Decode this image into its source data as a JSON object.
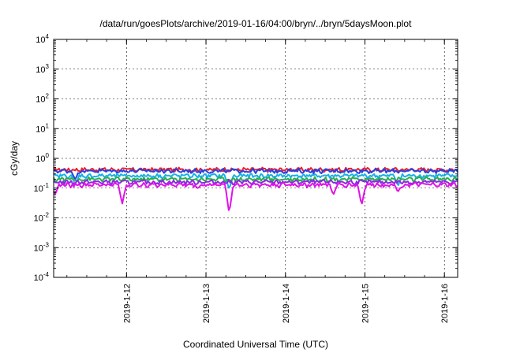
{
  "chart_data": {
    "type": "line",
    "title": "/data/run/goesPlots/archive/2019-01-16/04:00/bryn/../bryn/5daysMoon.plot",
    "xlabel": "Coordinated Universal Time (UTC)",
    "ylabel": "cGy/day",
    "yscale": "log",
    "ylim": [
      0.0001,
      10000
    ],
    "xlim": [
      "2019-01-11T02:00",
      "2019-01-16T04:00"
    ],
    "grid": true,
    "y_ticks": [
      {
        "value": 0.0001,
        "base": "10",
        "exp": "-4"
      },
      {
        "value": 0.001,
        "base": "10",
        "exp": "-3"
      },
      {
        "value": 0.01,
        "base": "10",
        "exp": "-2"
      },
      {
        "value": 0.1,
        "base": "10",
        "exp": "-1"
      },
      {
        "value": 1,
        "base": "10",
        "exp": "0"
      },
      {
        "value": 10,
        "base": "10",
        "exp": "1"
      },
      {
        "value": 100,
        "base": "10",
        "exp": "2"
      },
      {
        "value": 1000,
        "base": "10",
        "exp": "3"
      },
      {
        "value": 10000,
        "base": "10",
        "exp": "4"
      }
    ],
    "x_ticks": [
      {
        "value": "2019-01-12T00:00",
        "label": "2019-1-12"
      },
      {
        "value": "2019-01-13T00:00",
        "label": "2019-1-13"
      },
      {
        "value": "2019-01-14T00:00",
        "label": "2019-1-14"
      },
      {
        "value": "2019-01-15T00:00",
        "label": "2019-1-15"
      },
      {
        "value": "2019-01-16T00:00",
        "label": "2019-1-16"
      }
    ],
    "series": [
      {
        "color": "#e8212f",
        "level": 0.42,
        "dips": []
      },
      {
        "color": "#2a3fe0",
        "level": 0.38,
        "dips": [
          {
            "x": "2019-01-11T08:30",
            "y": 0.2
          }
        ]
      },
      {
        "color": "#18b0e8",
        "level": 0.26,
        "dips": [
          {
            "x": "2019-01-11T08:30",
            "y": 0.13
          },
          {
            "x": "2019-01-13T07:00",
            "y": 0.09
          },
          {
            "x": "2019-01-15T10:00",
            "y": 0.12
          }
        ]
      },
      {
        "color": "#2ab04a",
        "level": 0.2,
        "dips": []
      },
      {
        "color": "#8a2be2",
        "level": 0.16,
        "dips": []
      },
      {
        "color": "#e012e8",
        "level": 0.13,
        "dips": [
          {
            "x": "2019-01-11T02:30",
            "y": 0.06
          },
          {
            "x": "2019-01-11T22:45",
            "y": 0.03
          },
          {
            "x": "2019-01-12T21:30",
            "y": 0.1
          },
          {
            "x": "2019-01-13T07:00",
            "y": 0.014
          },
          {
            "x": "2019-01-14T14:30",
            "y": 0.06
          },
          {
            "x": "2019-01-14T23:00",
            "y": 0.026
          },
          {
            "x": "2019-01-15T10:00",
            "y": 0.075
          }
        ]
      }
    ]
  }
}
